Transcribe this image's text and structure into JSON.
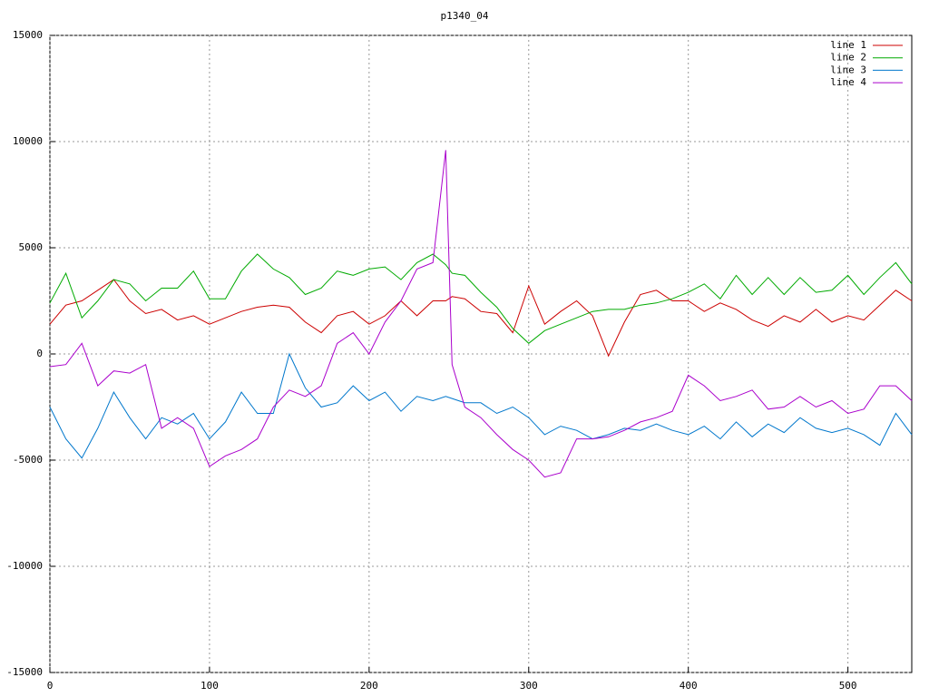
{
  "chart_data": {
    "type": "line",
    "title": "p1340_04",
    "x": [
      0,
      10,
      20,
      30,
      40,
      50,
      60,
      70,
      80,
      90,
      100,
      110,
      120,
      130,
      140,
      150,
      160,
      170,
      180,
      190,
      200,
      210,
      220,
      230,
      240,
      248,
      252,
      260,
      270,
      280,
      290,
      300,
      310,
      320,
      330,
      340,
      350,
      360,
      370,
      380,
      390,
      400,
      410,
      420,
      430,
      440,
      450,
      460,
      470,
      480,
      490,
      500,
      510,
      520,
      530,
      540
    ],
    "series": [
      {
        "name": "line 1",
        "color": "#cc0000",
        "values": [
          1400,
          2300,
          2500,
          3000,
          3500,
          2500,
          1900,
          2100,
          1600,
          1800,
          1400,
          1700,
          2000,
          2200,
          2300,
          2200,
          1500,
          1000,
          1800,
          2000,
          1400,
          1800,
          2500,
          1800,
          2500,
          2500,
          2700,
          2600,
          2000,
          1900,
          1000,
          3200,
          1400,
          2000,
          2500,
          1800,
          -100,
          1500,
          2800,
          3000,
          2500,
          2500,
          2000,
          2400,
          2100,
          1600,
          1300,
          1800,
          1500,
          2100,
          1500,
          1800,
          1600,
          2300,
          3000,
          2500
        ]
      },
      {
        "name": "line 2",
        "color": "#00aa00",
        "values": [
          2400,
          3800,
          1700,
          2500,
          3500,
          3300,
          2500,
          3100,
          3100,
          3900,
          2600,
          2600,
          3900,
          4700,
          4000,
          3600,
          2800,
          3100,
          3900,
          3700,
          4000,
          4100,
          3500,
          4300,
          4700,
          4200,
          3800,
          3700,
          2900,
          2200,
          1200,
          500,
          1100,
          1400,
          1700,
          2000,
          2100,
          2100,
          2300,
          2400,
          2600,
          2900,
          3300,
          2600,
          3700,
          2800,
          3600,
          2800,
          3600,
          2900,
          3000,
          3700,
          2800,
          3600,
          4300,
          3300
        ]
      },
      {
        "name": "line 3",
        "color": "#0077cc",
        "values": [
          -2500,
          -4000,
          -4900,
          -3500,
          -1800,
          -3000,
          -4000,
          -3000,
          -3300,
          -2800,
          -4000,
          -3200,
          -1800,
          -2800,
          -2800,
          0,
          -1600,
          -2500,
          -2300,
          -1500,
          -2200,
          -1800,
          -2700,
          -2000,
          -2200,
          -2000,
          -2100,
          -2300,
          -2300,
          -2800,
          -2500,
          -3000,
          -3800,
          -3400,
          -3600,
          -4000,
          -3800,
          -3500,
          -3600,
          -3300,
          -3600,
          -3800,
          -3400,
          -4000,
          -3200,
          -3900,
          -3300,
          -3700,
          -3000,
          -3500,
          -3700,
          -3500,
          -3800,
          -4300,
          -2800,
          -3800
        ]
      },
      {
        "name": "line 4",
        "color": "#aa00cc",
        "values": [
          -600,
          -500,
          500,
          -1500,
          -800,
          -900,
          -500,
          -3500,
          -3000,
          -3500,
          -5300,
          -4800,
          -4500,
          -4000,
          -2500,
          -1700,
          -2000,
          -1500,
          500,
          1000,
          0,
          1500,
          2500,
          4000,
          4300,
          9600,
          -500,
          -2500,
          -3000,
          -3800,
          -4500,
          -5000,
          -5800,
          -5600,
          -4000,
          -4000,
          -3900,
          -3600,
          -3200,
          -3000,
          -2700,
          -1000,
          -1500,
          -2200,
          -2000,
          -1700,
          -2600,
          -2500,
          -2000,
          -2500,
          -2200,
          -2800,
          -2600,
          -1500,
          -1500,
          -2200
        ]
      }
    ],
    "xlim": [
      0,
      540
    ],
    "xticks": [
      0,
      100,
      200,
      300,
      400,
      500
    ],
    "ylim": [
      -15000,
      15000
    ],
    "yticks": [
      -15000,
      -10000,
      -5000,
      0,
      5000,
      10000,
      15000
    ],
    "grid": true,
    "legend": "top-right"
  }
}
